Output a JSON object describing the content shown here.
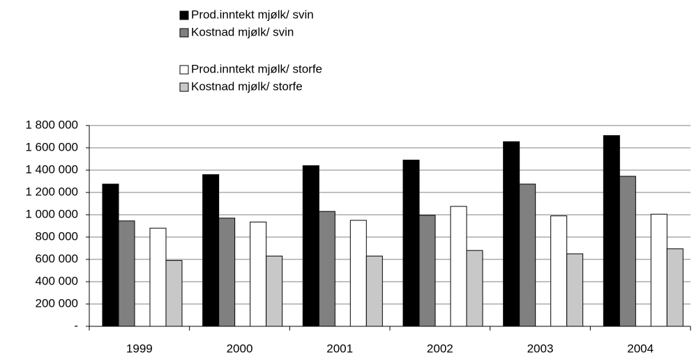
{
  "chart_data": {
    "type": "bar",
    "categories": [
      "1999",
      "2000",
      "2001",
      "2002",
      "2003",
      "2004"
    ],
    "series": [
      {
        "name": "Prod.inntekt mjølk/ svin",
        "color": "#000000",
        "values": [
          1275000,
          1360000,
          1440000,
          1490000,
          1655000,
          1710000
        ]
      },
      {
        "name": "Kostnad mjølk/ svin",
        "color": "#808080",
        "values": [
          945000,
          970000,
          1030000,
          995000,
          1275000,
          1345000
        ]
      },
      {
        "name": "Prod.inntekt mjølk/ storfe",
        "color": "#ffffff",
        "values": [
          880000,
          935000,
          950000,
          1075000,
          990000,
          1005000
        ]
      },
      {
        "name": "Kostnad mjølk/ storfe",
        "color": "#c8c8c8",
        "values": [
          590000,
          630000,
          630000,
          680000,
          650000,
          695000
        ]
      }
    ],
    "ylim": [
      0,
      1800000
    ],
    "yticks": [
      {
        "value": 0,
        "label": "-"
      },
      {
        "value": 200000,
        "label": "200 000"
      },
      {
        "value": 400000,
        "label": "400 000"
      },
      {
        "value": 600000,
        "label": "600 000"
      },
      {
        "value": 800000,
        "label": "800 000"
      },
      {
        "value": 1000000,
        "label": "1 000 000"
      },
      {
        "value": 1200000,
        "label": "1 200 000"
      },
      {
        "value": 1400000,
        "label": "1 400 000"
      },
      {
        "value": 1600000,
        "label": "1 600 000"
      },
      {
        "value": 1800000,
        "label": "1 800 000"
      }
    ],
    "grid": true
  }
}
